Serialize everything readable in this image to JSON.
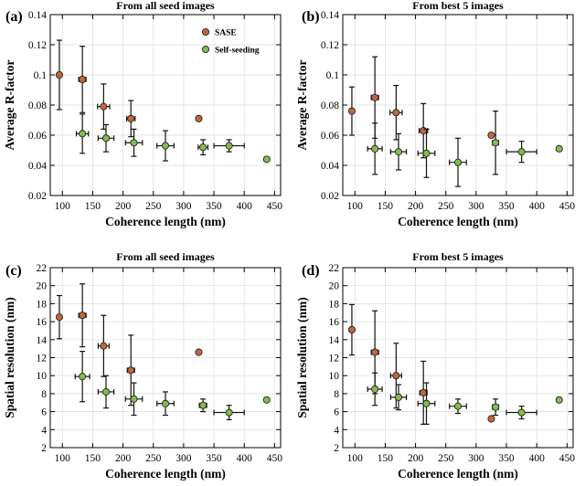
{
  "chart_data": [
    {
      "type": "scatter",
      "panel_label": "(a)",
      "title": "From all seed images",
      "xlabel": "Coherence length (nm)",
      "ylabel": "Average R-factor",
      "xlim": [
        80,
        460
      ],
      "ylim": [
        0.02,
        0.14
      ],
      "xticks": [
        "100",
        "150",
        "200",
        "250",
        "300",
        "350",
        "400",
        "450"
      ],
      "yticks": [
        "0.02",
        "0.04",
        "0.06",
        "0.08",
        "0.1",
        "0.12",
        "0.14"
      ],
      "grid": true,
      "legend": {
        "placement": "top-right",
        "entries": [
          "SASE",
          "Self-seeding"
        ]
      },
      "series": [
        {
          "name": "SASE",
          "color": "#c8643c",
          "points": [
            {
              "x": 95,
              "y": 0.1,
              "xerr": 0,
              "yerr": 0.023
            },
            {
              "x": 133,
              "y": 0.097,
              "xerr": 6,
              "yerr": 0.022
            },
            {
              "x": 168,
              "y": 0.079,
              "xerr": 10,
              "yerr": 0.015
            },
            {
              "x": 213,
              "y": 0.071,
              "xerr": 7,
              "yerr": 0.012
            },
            {
              "x": 325,
              "y": 0.071,
              "xerr": 0,
              "yerr": 0
            }
          ]
        },
        {
          "name": "Self-seeding",
          "color": "#7fbf4d",
          "points": [
            {
              "x": 133,
              "y": 0.061,
              "xerr": 10,
              "yerr": 0.013
            },
            {
              "x": 172,
              "y": 0.058,
              "xerr": 13,
              "yerr": 0.009
            },
            {
              "x": 218,
              "y": 0.055,
              "xerr": 14,
              "yerr": 0.009
            },
            {
              "x": 270,
              "y": 0.053,
              "xerr": 14,
              "yerr": 0.01
            },
            {
              "x": 332,
              "y": 0.052,
              "xerr": 8,
              "yerr": 0.005
            },
            {
              "x": 375,
              "y": 0.053,
              "xerr": 25,
              "yerr": 0.004
            },
            {
              "x": 437,
              "y": 0.044,
              "xerr": 0,
              "yerr": 0
            }
          ]
        }
      ]
    },
    {
      "type": "scatter",
      "panel_label": "(b)",
      "title": "From best 5 images",
      "xlabel": "Coherence length (nm)",
      "ylabel": "Average R-factor",
      "xlim": [
        80,
        460
      ],
      "ylim": [
        0.02,
        0.14
      ],
      "xticks": [
        "100",
        "150",
        "200",
        "250",
        "300",
        "350",
        "400",
        "450"
      ],
      "yticks": [
        "0.02",
        "0.04",
        "0.06",
        "0.08",
        "0.1",
        "0.12",
        "0.14"
      ],
      "grid": true,
      "series": [
        {
          "name": "SASE",
          "color": "#c8643c",
          "points": [
            {
              "x": 95,
              "y": 0.076,
              "xerr": 0,
              "yerr": 0.016
            },
            {
              "x": 133,
              "y": 0.085,
              "xerr": 6,
              "yerr": 0.027
            },
            {
              "x": 168,
              "y": 0.075,
              "xerr": 10,
              "yerr": 0.018
            },
            {
              "x": 213,
              "y": 0.063,
              "xerr": 7,
              "yerr": 0.018
            },
            {
              "x": 325,
              "y": 0.06,
              "xerr": 0,
              "yerr": 0
            }
          ]
        },
        {
          "name": "Self-seeding",
          "color": "#7fbf4d",
          "points": [
            {
              "x": 133,
              "y": 0.051,
              "xerr": 12,
              "yerr": 0.017
            },
            {
              "x": 172,
              "y": 0.049,
              "xerr": 13,
              "yerr": 0.012
            },
            {
              "x": 218,
              "y": 0.048,
              "xerr": 14,
              "yerr": 0.016
            },
            {
              "x": 270,
              "y": 0.042,
              "xerr": 14,
              "yerr": 0.016
            },
            {
              "x": 332,
              "y": 0.055,
              "xerr": 5,
              "yerr": 0.021
            },
            {
              "x": 375,
              "y": 0.049,
              "xerr": 25,
              "yerr": 0.007
            },
            {
              "x": 437,
              "y": 0.051,
              "xerr": 0,
              "yerr": 0
            }
          ]
        }
      ]
    },
    {
      "type": "scatter",
      "panel_label": "(c)",
      "title": "From all seed images",
      "xlabel": "Coherence length (nm)",
      "ylabel": "Spatial resolution (nm)",
      "xlim": [
        80,
        460
      ],
      "ylim": [
        2,
        22
      ],
      "xticks": [
        "100",
        "150",
        "200",
        "250",
        "300",
        "350",
        "400",
        "450"
      ],
      "yticks": [
        "2",
        "4",
        "6",
        "8",
        "10",
        "12",
        "14",
        "16",
        "18",
        "20",
        "22"
      ],
      "grid": true,
      "series": [
        {
          "name": "SASE",
          "color": "#c8643c",
          "points": [
            {
              "x": 95,
              "y": 16.5,
              "xerr": 0,
              "yerr": 2.4
            },
            {
              "x": 133,
              "y": 16.7,
              "xerr": 6,
              "yerr": 3.5
            },
            {
              "x": 168,
              "y": 13.3,
              "xerr": 9,
              "yerr": 3.4
            },
            {
              "x": 213,
              "y": 10.6,
              "xerr": 6,
              "yerr": 3.9
            },
            {
              "x": 325,
              "y": 12.6,
              "xerr": 0,
              "yerr": 0
            }
          ]
        },
        {
          "name": "Self-seeding",
          "color": "#7fbf4d",
          "points": [
            {
              "x": 133,
              "y": 9.9,
              "xerr": 12,
              "yerr": 2.8
            },
            {
              "x": 172,
              "y": 8.2,
              "xerr": 13,
              "yerr": 1.8
            },
            {
              "x": 218,
              "y": 7.4,
              "xerr": 14,
              "yerr": 1.8
            },
            {
              "x": 270,
              "y": 6.9,
              "xerr": 14,
              "yerr": 1.3
            },
            {
              "x": 332,
              "y": 6.7,
              "xerr": 6,
              "yerr": 0.7
            },
            {
              "x": 375,
              "y": 5.9,
              "xerr": 25,
              "yerr": 0.8
            },
            {
              "x": 437,
              "y": 7.3,
              "xerr": 0,
              "yerr": 0
            }
          ]
        }
      ]
    },
    {
      "type": "scatter",
      "panel_label": "(d)",
      "title": "From best 5 images",
      "xlabel": "Coherence length (nm)",
      "ylabel": "Spatial resolution (nm)",
      "xlim": [
        80,
        460
      ],
      "ylim": [
        2,
        22
      ],
      "xticks": [
        "100",
        "150",
        "200",
        "250",
        "300",
        "350",
        "400",
        "450"
      ],
      "yticks": [
        "2",
        "4",
        "6",
        "8",
        "10",
        "12",
        "14",
        "16",
        "18",
        "20",
        "22"
      ],
      "grid": true,
      "series": [
        {
          "name": "SASE",
          "color": "#c8643c",
          "points": [
            {
              "x": 95,
              "y": 15.1,
              "xerr": 0,
              "yerr": 2.8
            },
            {
              "x": 133,
              "y": 12.6,
              "xerr": 6,
              "yerr": 4.6
            },
            {
              "x": 168,
              "y": 10.0,
              "xerr": 9,
              "yerr": 3.6
            },
            {
              "x": 213,
              "y": 8.1,
              "xerr": 6,
              "yerr": 3.5
            },
            {
              "x": 325,
              "y": 5.2,
              "xerr": 0,
              "yerr": 0
            }
          ]
        },
        {
          "name": "Self-seeding",
          "color": "#7fbf4d",
          "points": [
            {
              "x": 133,
              "y": 8.5,
              "xerr": 12,
              "yerr": 1.8
            },
            {
              "x": 172,
              "y": 7.6,
              "xerr": 13,
              "yerr": 1.4
            },
            {
              "x": 218,
              "y": 6.9,
              "xerr": 14,
              "yerr": 2.3
            },
            {
              "x": 270,
              "y": 6.6,
              "xerr": 14,
              "yerr": 0.8
            },
            {
              "x": 332,
              "y": 6.5,
              "xerr": 5,
              "yerr": 0.9
            },
            {
              "x": 375,
              "y": 5.9,
              "xerr": 25,
              "yerr": 0.7
            },
            {
              "x": 437,
              "y": 7.3,
              "xerr": 0,
              "yerr": 0
            }
          ]
        }
      ]
    }
  ]
}
